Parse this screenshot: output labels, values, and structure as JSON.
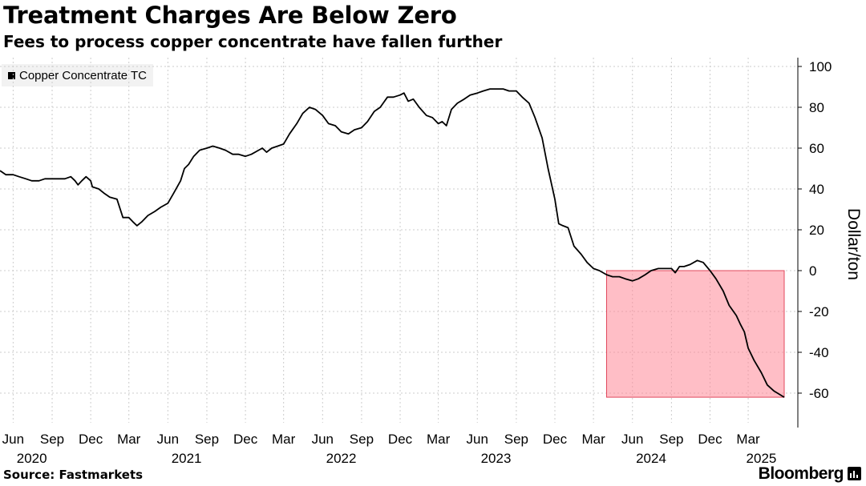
{
  "title": "Treatment Charges Are Below Zero",
  "subtitle": "Fees to process copper concentrate have fallen further",
  "source": "Source: Fastmarkets",
  "brand": "Bloomberg",
  "colors": {
    "line": "#000000",
    "highlight_fill": "#ff8898",
    "highlight_stroke": "#e0485c",
    "grid": "#cccccc"
  },
  "chart_data": {
    "type": "line",
    "title": "Treatment Charges Are Below Zero",
    "subtitle": "Fees to process copper concentrate have fallen further",
    "ylabel": "Dollar/ton",
    "ylim": [
      -70,
      103
    ],
    "yticks": [
      100,
      80,
      60,
      40,
      20,
      0,
      -20,
      -40,
      -60
    ],
    "ytick_labels": [
      "100",
      "80",
      "60",
      "40",
      "20",
      "0",
      "-20",
      "-40",
      "-60"
    ],
    "x_ticks": [
      {
        "label": "Jun",
        "date": "2020-06-01"
      },
      {
        "label": "Sep",
        "date": "2020-09-01"
      },
      {
        "label": "Dec",
        "date": "2020-12-01"
      },
      {
        "label": "Mar",
        "date": "2021-03-01"
      },
      {
        "label": "Jun",
        "date": "2021-06-01"
      },
      {
        "label": "Sep",
        "date": "2021-09-01"
      },
      {
        "label": "Dec",
        "date": "2021-12-01"
      },
      {
        "label": "Mar",
        "date": "2022-03-01"
      },
      {
        "label": "Jun",
        "date": "2022-06-01"
      },
      {
        "label": "Sep",
        "date": "2022-09-01"
      },
      {
        "label": "Dec",
        "date": "2022-12-01"
      },
      {
        "label": "Mar",
        "date": "2023-03-01"
      },
      {
        "label": "Jun",
        "date": "2023-06-01"
      },
      {
        "label": "Sep",
        "date": "2023-09-01"
      },
      {
        "label": "Dec",
        "date": "2023-12-01"
      },
      {
        "label": "Mar",
        "date": "2024-03-01"
      },
      {
        "label": "Jun",
        "date": "2024-06-01"
      },
      {
        "label": "Sep",
        "date": "2024-09-01"
      },
      {
        "label": "Dec",
        "date": "2024-12-01"
      },
      {
        "label": "Mar",
        "date": "2025-03-01"
      }
    ],
    "year_labels": [
      {
        "label": "2020",
        "date": "2020-07-15"
      },
      {
        "label": "2021",
        "date": "2021-07-15"
      },
      {
        "label": "2022",
        "date": "2022-07-15"
      },
      {
        "label": "2023",
        "date": "2023-07-15"
      },
      {
        "label": "2024",
        "date": "2024-07-15"
      },
      {
        "label": "2025",
        "date": "2025-04-01"
      }
    ],
    "x_range": [
      "2020-05-01",
      "2025-05-25"
    ],
    "legend": "top-left",
    "grid": true,
    "highlight": {
      "x_start": "2024-04-01",
      "x_end": "2025-05-25",
      "y_start": 0,
      "y_end": -62
    },
    "series": [
      {
        "name": "Copper Concentrate TC",
        "points": [
          [
            "2020-05-01",
            49
          ],
          [
            "2020-05-15",
            47
          ],
          [
            "2020-06-01",
            47
          ],
          [
            "2020-06-15",
            46
          ],
          [
            "2020-07-01",
            45
          ],
          [
            "2020-07-15",
            44
          ],
          [
            "2020-08-01",
            44
          ],
          [
            "2020-08-15",
            45
          ],
          [
            "2020-09-01",
            45
          ],
          [
            "2020-09-15",
            45
          ],
          [
            "2020-10-01",
            45
          ],
          [
            "2020-10-15",
            46
          ],
          [
            "2020-10-25",
            44
          ],
          [
            "2020-11-01",
            42
          ],
          [
            "2020-11-10",
            44
          ],
          [
            "2020-11-20",
            46
          ],
          [
            "2020-12-01",
            44
          ],
          [
            "2020-12-05",
            41
          ],
          [
            "2020-12-20",
            40
          ],
          [
            "2021-01-01",
            38
          ],
          [
            "2021-01-15",
            36
          ],
          [
            "2021-02-01",
            35
          ],
          [
            "2021-02-15",
            26
          ],
          [
            "2021-03-01",
            26
          ],
          [
            "2021-03-10",
            24
          ],
          [
            "2021-03-20",
            22
          ],
          [
            "2021-04-01",
            24
          ],
          [
            "2021-04-15",
            27
          ],
          [
            "2021-05-01",
            29
          ],
          [
            "2021-05-15",
            31
          ],
          [
            "2021-06-01",
            33
          ],
          [
            "2021-06-15",
            38
          ],
          [
            "2021-07-01",
            44
          ],
          [
            "2021-07-10",
            50
          ],
          [
            "2021-07-20",
            52
          ],
          [
            "2021-08-01",
            56
          ],
          [
            "2021-08-15",
            59
          ],
          [
            "2021-09-01",
            60
          ],
          [
            "2021-09-15",
            61
          ],
          [
            "2021-10-01",
            60
          ],
          [
            "2021-10-15",
            59
          ],
          [
            "2021-11-01",
            57
          ],
          [
            "2021-11-15",
            57
          ],
          [
            "2021-12-01",
            56
          ],
          [
            "2021-12-15",
            57
          ],
          [
            "2022-01-01",
            59
          ],
          [
            "2022-01-10",
            60
          ],
          [
            "2022-01-20",
            58
          ],
          [
            "2022-02-01",
            60
          ],
          [
            "2022-02-15",
            61
          ],
          [
            "2022-03-01",
            62
          ],
          [
            "2022-03-15",
            67
          ],
          [
            "2022-04-01",
            72
          ],
          [
            "2022-04-15",
            77
          ],
          [
            "2022-05-01",
            80
          ],
          [
            "2022-05-15",
            79
          ],
          [
            "2022-06-01",
            76
          ],
          [
            "2022-06-15",
            72
          ],
          [
            "2022-07-01",
            71
          ],
          [
            "2022-07-15",
            68
          ],
          [
            "2022-08-01",
            67
          ],
          [
            "2022-08-15",
            69
          ],
          [
            "2022-09-01",
            70
          ],
          [
            "2022-09-15",
            73
          ],
          [
            "2022-10-01",
            78
          ],
          [
            "2022-10-15",
            80
          ],
          [
            "2022-11-01",
            85
          ],
          [
            "2022-11-15",
            85
          ],
          [
            "2022-12-01",
            86
          ],
          [
            "2022-12-10",
            87
          ],
          [
            "2022-12-20",
            83
          ],
          [
            "2023-01-01",
            84
          ],
          [
            "2023-01-15",
            80
          ],
          [
            "2023-02-01",
            76
          ],
          [
            "2023-02-15",
            75
          ],
          [
            "2023-03-01",
            72
          ],
          [
            "2023-03-10",
            73
          ],
          [
            "2023-03-20",
            71
          ],
          [
            "2023-04-01",
            79
          ],
          [
            "2023-04-15",
            82
          ],
          [
            "2023-05-01",
            84
          ],
          [
            "2023-05-15",
            86
          ],
          [
            "2023-06-01",
            87
          ],
          [
            "2023-06-15",
            88
          ],
          [
            "2023-07-01",
            89
          ],
          [
            "2023-07-15",
            89
          ],
          [
            "2023-08-01",
            89
          ],
          [
            "2023-08-15",
            88
          ],
          [
            "2023-09-01",
            88
          ],
          [
            "2023-09-15",
            85
          ],
          [
            "2023-10-01",
            82
          ],
          [
            "2023-10-15",
            75
          ],
          [
            "2023-11-01",
            65
          ],
          [
            "2023-11-15",
            50
          ],
          [
            "2023-12-01",
            35
          ],
          [
            "2023-12-10",
            23
          ],
          [
            "2023-12-20",
            22
          ],
          [
            "2024-01-01",
            21
          ],
          [
            "2024-01-15",
            12
          ],
          [
            "2024-02-01",
            8
          ],
          [
            "2024-02-15",
            4
          ],
          [
            "2024-03-01",
            1
          ],
          [
            "2024-03-15",
            0
          ],
          [
            "2024-04-01",
            -2
          ],
          [
            "2024-04-15",
            -3
          ],
          [
            "2024-05-01",
            -3
          ],
          [
            "2024-05-15",
            -4
          ],
          [
            "2024-06-01",
            -5
          ],
          [
            "2024-06-15",
            -4
          ],
          [
            "2024-07-01",
            -2
          ],
          [
            "2024-07-15",
            0
          ],
          [
            "2024-08-01",
            1
          ],
          [
            "2024-08-15",
            1
          ],
          [
            "2024-09-01",
            1
          ],
          [
            "2024-09-10",
            -1
          ],
          [
            "2024-09-20",
            2
          ],
          [
            "2024-10-01",
            2
          ],
          [
            "2024-10-15",
            3
          ],
          [
            "2024-11-01",
            5
          ],
          [
            "2024-11-15",
            4
          ],
          [
            "2024-12-01",
            0
          ],
          [
            "2024-12-15",
            -4
          ],
          [
            "2025-01-01",
            -10
          ],
          [
            "2025-01-15",
            -17
          ],
          [
            "2025-02-01",
            -22
          ],
          [
            "2025-02-10",
            -26
          ],
          [
            "2025-02-20",
            -30
          ],
          [
            "2025-03-01",
            -38
          ],
          [
            "2025-03-15",
            -44
          ],
          [
            "2025-04-01",
            -50
          ],
          [
            "2025-04-15",
            -56
          ],
          [
            "2025-05-01",
            -59
          ],
          [
            "2025-05-25",
            -62
          ]
        ]
      }
    ]
  }
}
